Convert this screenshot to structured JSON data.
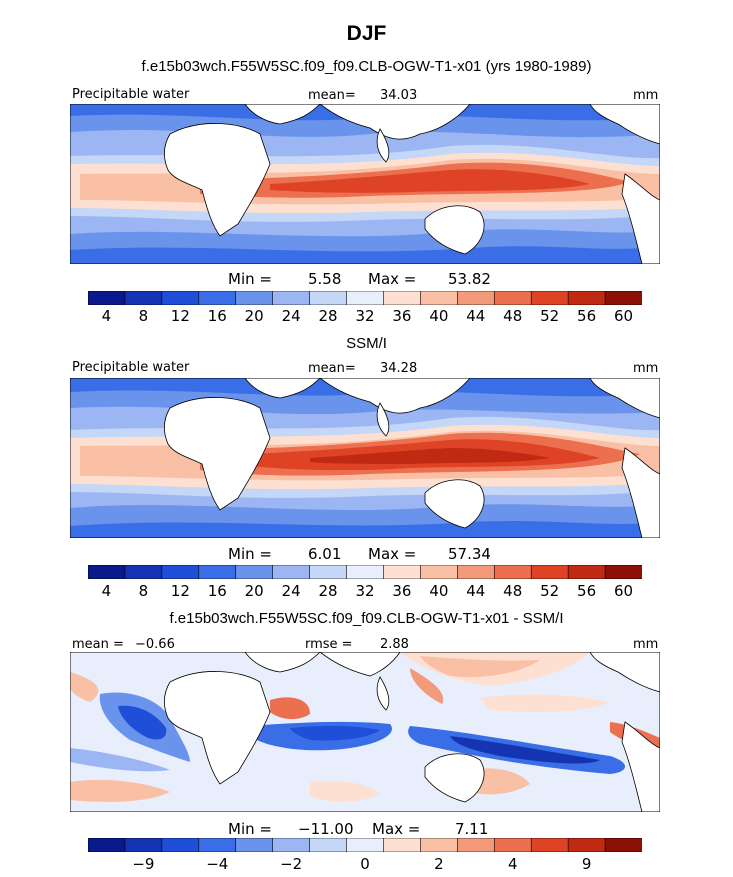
{
  "title": "DJF",
  "panels": [
    {
      "title": "f.e15b03wch.F55W5SC.f09_f09.CLB-OGW-T1-x01 (yrs 1980-1989)",
      "variable_label": "Precipitable water",
      "stat_label": "mean=",
      "stat_value": "34.03",
      "units": "mm",
      "min_label": "Min =",
      "min_value": "5.58",
      "max_label": "Max =",
      "max_value": "53.82",
      "colorbar_ticks": [
        "4",
        "8",
        "12",
        "16",
        "20",
        "24",
        "28",
        "32",
        "36",
        "40",
        "44",
        "48",
        "52",
        "56",
        "60"
      ],
      "colorbar_colors": [
        "#0a1a8c",
        "#1434b4",
        "#1f4fd8",
        "#3a6ee6",
        "#6a93ec",
        "#9bb6f2",
        "#c5d7f7",
        "#e8eefb",
        "#fde0d2",
        "#f9c0a6",
        "#f39a7a",
        "#ec6f4f",
        "#df4326",
        "#c02a12",
        "#8c1006"
      ]
    },
    {
      "title": "SSM/I",
      "variable_label": "Precipitable water",
      "stat_label": "mean=",
      "stat_value": "34.28",
      "units": "mm",
      "min_label": "Min =",
      "min_value": "6.01",
      "max_label": "Max =",
      "max_value": "57.34",
      "colorbar_ticks": [
        "4",
        "8",
        "12",
        "16",
        "20",
        "24",
        "28",
        "32",
        "36",
        "40",
        "44",
        "48",
        "52",
        "56",
        "60"
      ],
      "colorbar_colors": [
        "#0a1a8c",
        "#1434b4",
        "#1f4fd8",
        "#3a6ee6",
        "#6a93ec",
        "#9bb6f2",
        "#c5d7f7",
        "#e8eefb",
        "#fde0d2",
        "#f9c0a6",
        "#f39a7a",
        "#ec6f4f",
        "#df4326",
        "#c02a12",
        "#8c1006"
      ]
    },
    {
      "title": "f.e15b03wch.F55W5SC.f09_f09.CLB-OGW-T1-x01 - SSM/I",
      "mean_label": "mean =",
      "mean_value": "−0.66",
      "stat_label": "rmse =",
      "stat_value": "2.88",
      "units": "mm",
      "min_label": "Min =",
      "min_value": "−11.00",
      "max_label": "Max =",
      "max_value": "7.11",
      "colorbar_ticks": [
        "−9",
        "−4",
        "−2",
        "0",
        "2",
        "4",
        "9"
      ],
      "colorbar_colors": [
        "#0a1a8c",
        "#1434b4",
        "#1f4fd8",
        "#3a6ee6",
        "#6a93ec",
        "#9bb6f2",
        "#c5d7f7",
        "#e8eefb",
        "#fde0d2",
        "#f9c0a6",
        "#f39a7a",
        "#ec6f4f",
        "#df4326",
        "#c02a12",
        "#8c1006"
      ]
    }
  ],
  "chart_data": [
    {
      "type": "heatmap",
      "title": "f.e15b03wch.F55W5SC.f09_f09.CLB-OGW-T1-x01 (yrs 1980-1989)",
      "variable": "Precipitable water",
      "units": "mm",
      "mean": 34.03,
      "min": 5.58,
      "max": 53.82,
      "colorbar_levels": [
        4,
        8,
        12,
        16,
        20,
        24,
        28,
        32,
        36,
        40,
        44,
        48,
        52,
        56,
        60
      ],
      "x_range_lon": [
        0,
        360
      ],
      "y_range_lat": [
        -45,
        45
      ]
    },
    {
      "type": "heatmap",
      "title": "SSM/I",
      "variable": "Precipitable water",
      "units": "mm",
      "mean": 34.28,
      "min": 6.01,
      "max": 57.34,
      "colorbar_levels": [
        4,
        8,
        12,
        16,
        20,
        24,
        28,
        32,
        36,
        40,
        44,
        48,
        52,
        56,
        60
      ],
      "x_range_lon": [
        0,
        360
      ],
      "y_range_lat": [
        -45,
        45
      ]
    },
    {
      "type": "heatmap",
      "title": "f.e15b03wch.F55W5SC.f09_f09.CLB-OGW-T1-x01 - SSM/I",
      "units": "mm",
      "mean": -0.66,
      "rmse": 2.88,
      "min": -11.0,
      "max": 7.11,
      "colorbar_levels": [
        -9,
        -4,
        -2,
        0,
        2,
        4,
        9
      ],
      "x_range_lon": [
        0,
        360
      ],
      "y_range_lat": [
        -45,
        45
      ]
    }
  ]
}
